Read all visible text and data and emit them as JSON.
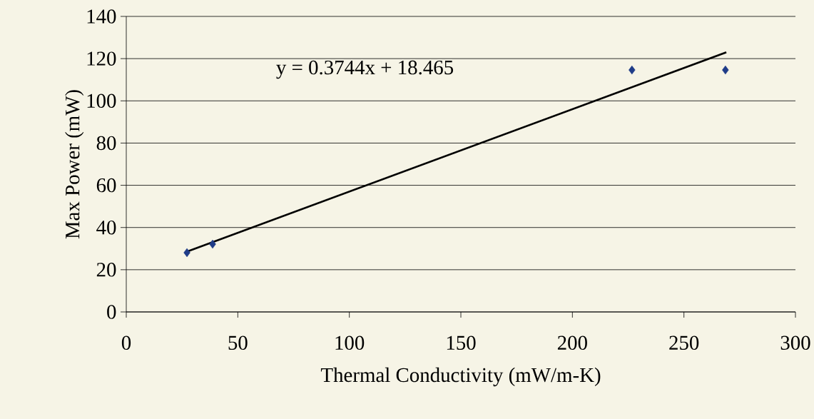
{
  "chart_data": {
    "type": "scatter",
    "xlabel": "Thermal Conductivity (mW/m-K)",
    "ylabel": "Max Power (mW)",
    "annotations": [
      "y = 0.3744x + 18.465"
    ],
    "series": [
      {
        "color": "#1f3c88",
        "marker": "diamond",
        "x": [
          27.2,
          38.7,
          226.7,
          268.6
        ],
        "values": [
          28.1,
          32.1,
          114.6,
          114.6
        ]
      },
      {
        "type": "line",
        "color": "#000000",
        "marker": "none",
        "x": [
          27,
          269
        ],
        "values": [
          28.5,
          123
        ]
      }
    ],
    "xlim": [
      0,
      300
    ],
    "xticks": [
      0,
      50,
      100,
      150,
      200,
      250,
      300
    ],
    "ylim": [
      0,
      140
    ],
    "yticks": [
      0,
      20,
      40,
      60,
      80,
      100,
      120,
      140
    ],
    "grid": "y"
  }
}
